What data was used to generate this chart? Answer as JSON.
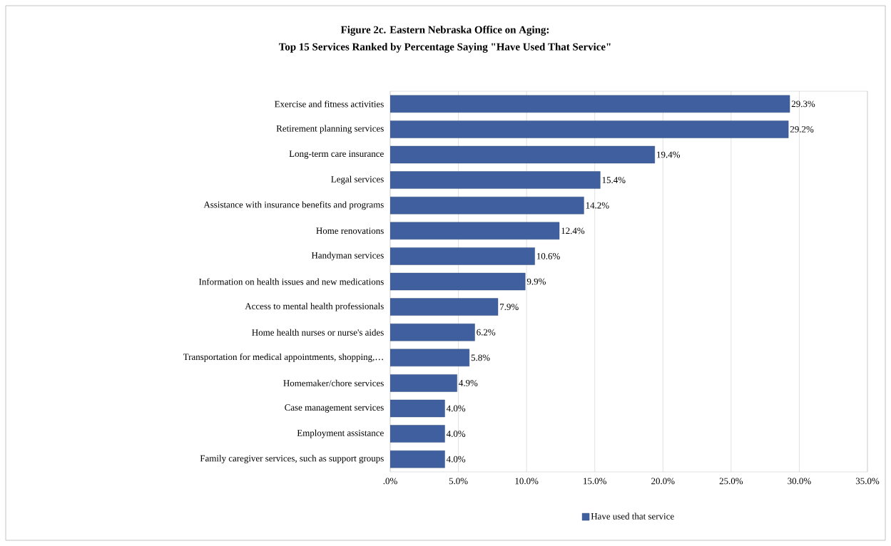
{
  "chart_data": {
    "type": "bar",
    "orientation": "horizontal",
    "title": "Figure 2c. Eastern Nebraska Office on Aging:",
    "subtitle": "Top 15 Services Ranked by Percentage Saying \"Have Used That Service\"",
    "categories": [
      "Exercise and fitness activities",
      "Retirement planning services",
      "Long-term care insurance",
      "Legal services",
      "Assistance with insurance benefits and programs",
      "Home renovations",
      "Handyman services",
      "Information on health issues and new medications",
      "Access to mental health professionals",
      "Home health nurses or nurse's aides",
      "Transportation for medical appointments, shopping,…",
      "Homemaker/chore services",
      "Case management services",
      "Employment assistance",
      "Family caregiver services, such as support groups"
    ],
    "series": [
      {
        "name": "Have used that service",
        "color": "#3f5f9f",
        "values": [
          29.3,
          29.2,
          19.4,
          15.4,
          14.2,
          12.4,
          10.6,
          9.9,
          7.9,
          6.2,
          5.8,
          4.9,
          4.0,
          4.0,
          4.0
        ]
      }
    ],
    "value_labels": [
      "29.3%",
      "29.2%",
      "19.4%",
      "15.4%",
      "14.2%",
      "12.4%",
      "10.6%",
      "9.9%",
      "7.9%",
      "6.2%",
      "5.8%",
      "4.9%",
      "4.0%",
      "4.0%",
      "4.0%"
    ],
    "xlim": [
      0,
      35
    ],
    "xticks": [
      {
        "value": 0,
        "label": ".0%"
      },
      {
        "value": 5,
        "label": "5.0%"
      },
      {
        "value": 10,
        "label": "10.0%"
      },
      {
        "value": 15,
        "label": "15.0%"
      },
      {
        "value": 20,
        "label": "20.0%"
      },
      {
        "value": 25,
        "label": "25.0%"
      },
      {
        "value": 30,
        "label": "30.0%"
      },
      {
        "value": 35,
        "label": "35.0%"
      }
    ],
    "grid": "x",
    "legend": "bottom"
  }
}
